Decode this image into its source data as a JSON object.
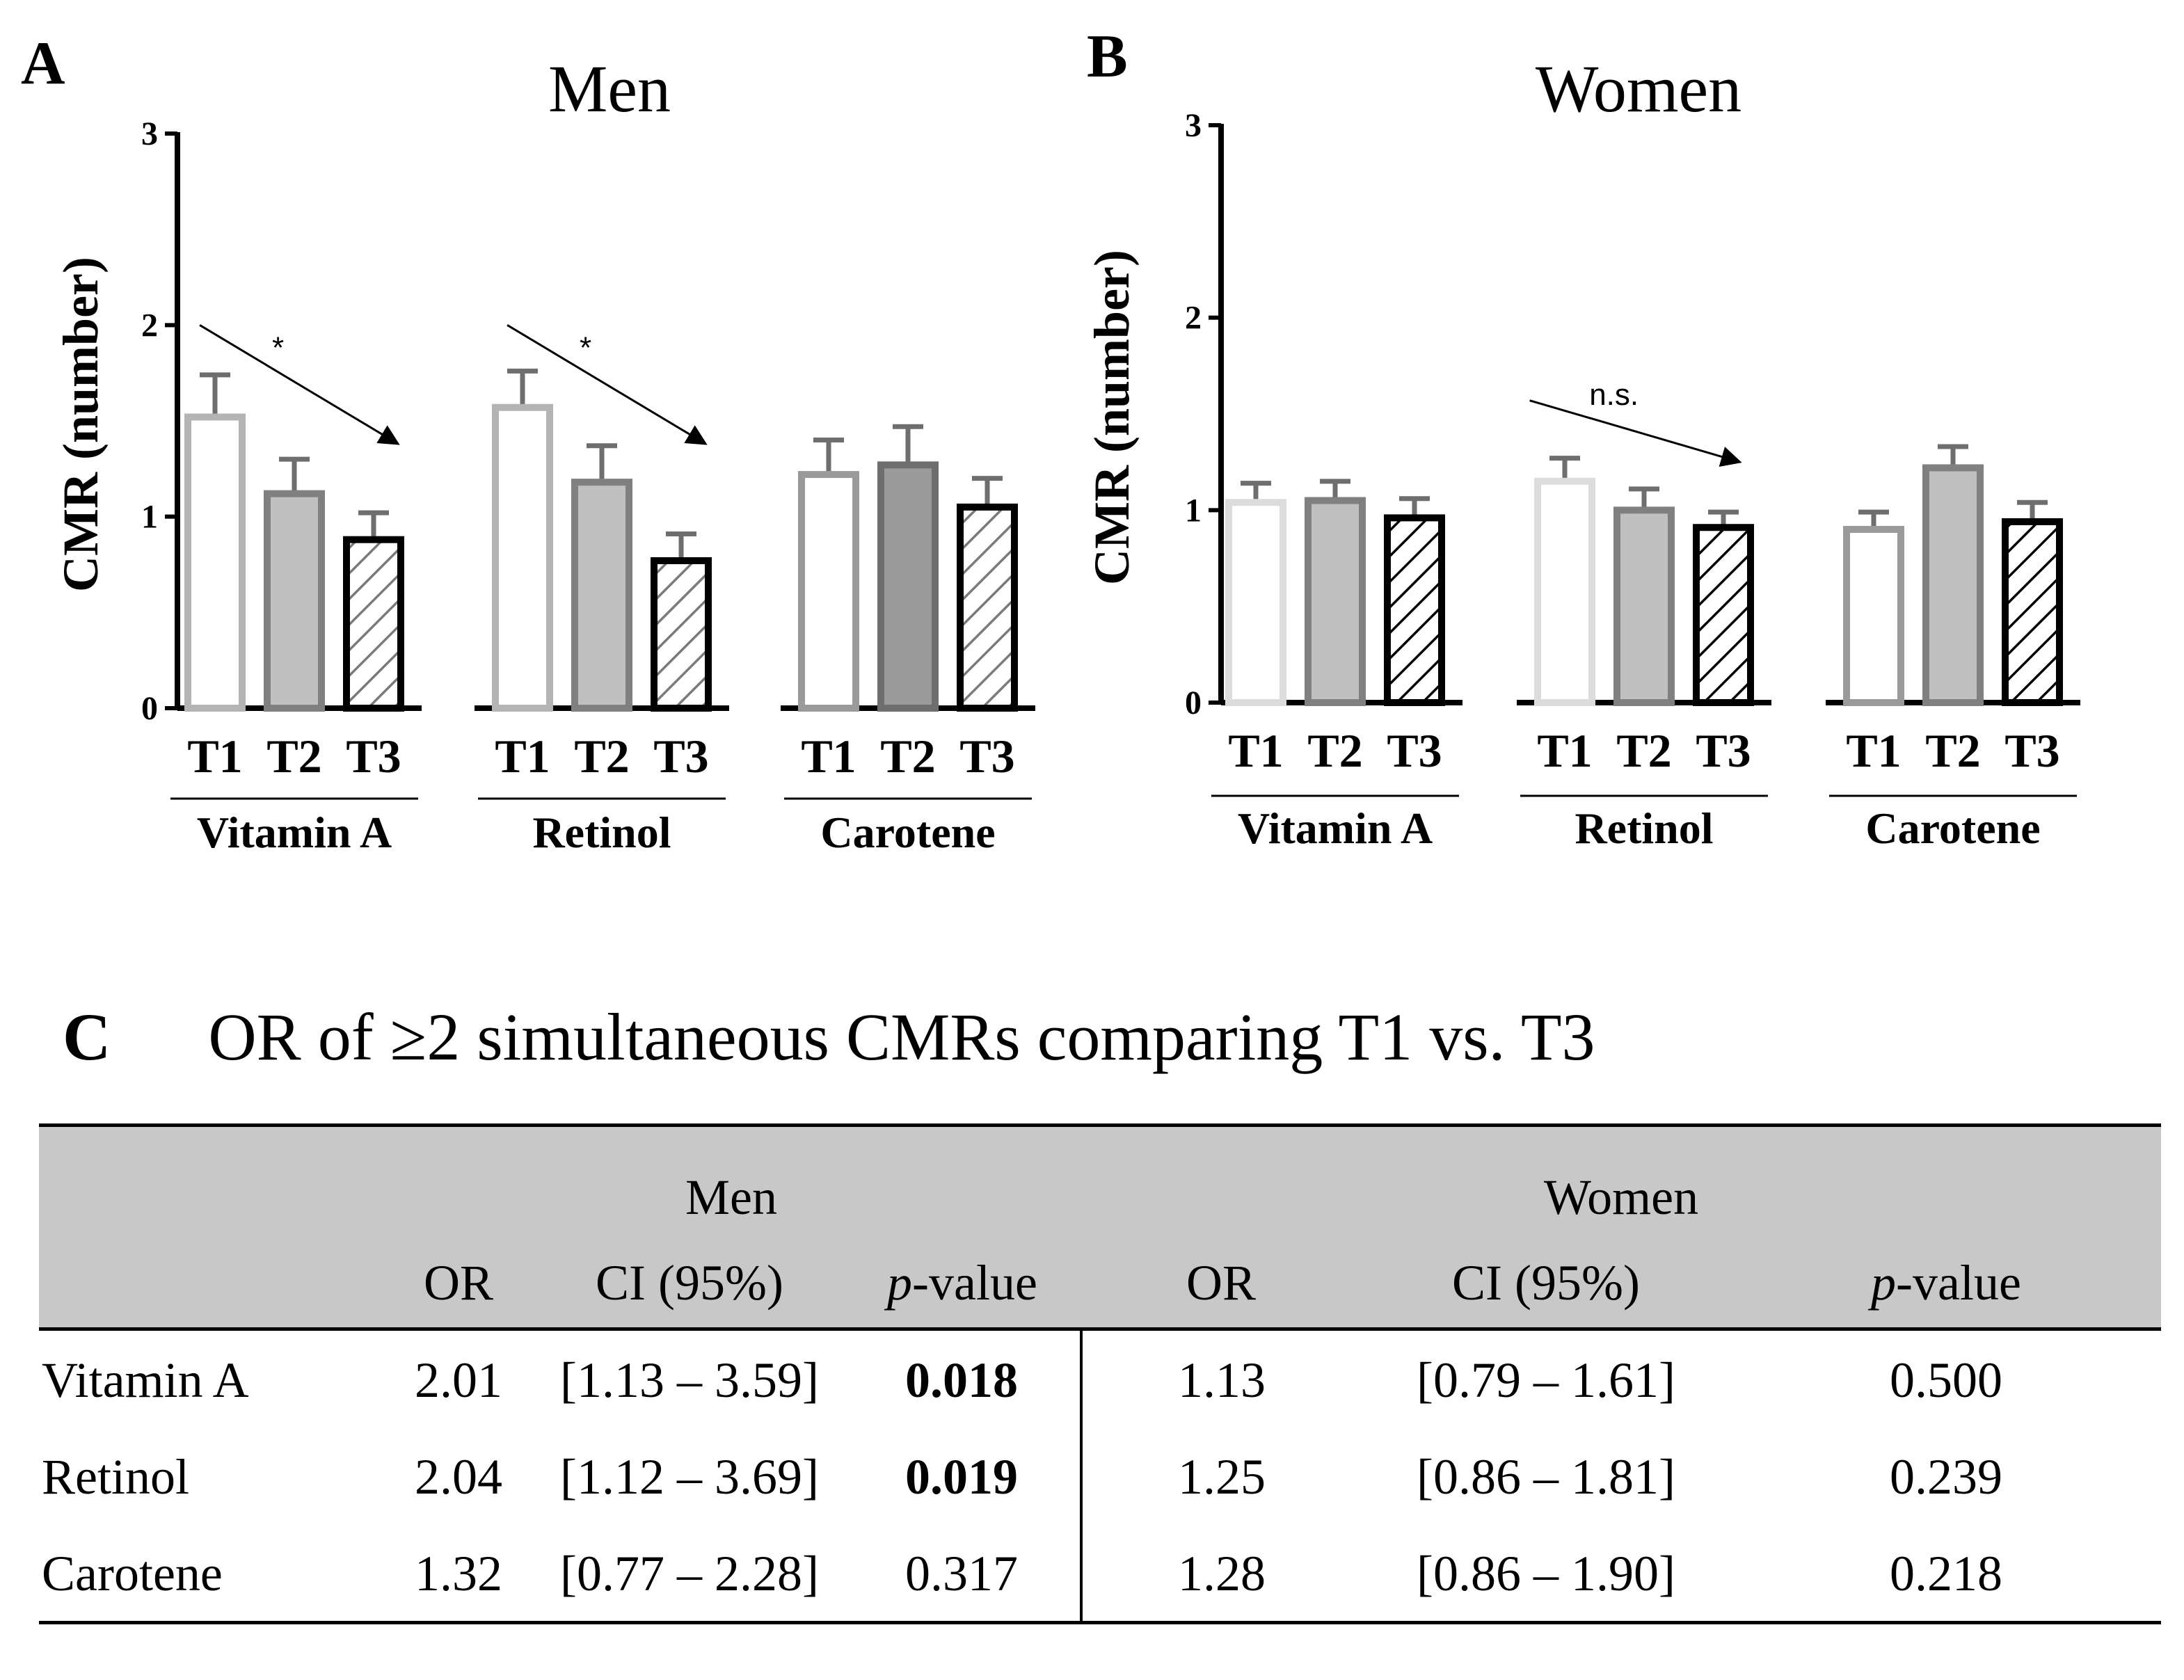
{
  "chart_data": [
    {
      "type": "bar",
      "panel_label": "A",
      "title": "Men",
      "ylabel": "CMR (number)",
      "xlabel": "",
      "ylim": [
        0,
        3
      ],
      "yticks": [
        "0",
        "1",
        "2",
        "3"
      ],
      "groups": [
        {
          "name": "Vitamin A",
          "categories": [
            "T1",
            "T2",
            "T3"
          ],
          "values": [
            1.52,
            1.12,
            0.88
          ],
          "errors": [
            0.22,
            0.18,
            0.14
          ],
          "styles": [
            "open-light",
            "gray",
            "hatched"
          ],
          "trend": {
            "label": "*",
            "from": [
              0.15,
              2.0
            ],
            "to": [
              2.65,
              1.38
            ]
          }
        },
        {
          "name": "Retinol",
          "categories": [
            "T1",
            "T2",
            "T3"
          ],
          "values": [
            1.57,
            1.18,
            0.77
          ],
          "errors": [
            0.19,
            0.19,
            0.14
          ],
          "styles": [
            "open-light",
            "gray",
            "hatched"
          ],
          "trend": {
            "label": "*",
            "from": [
              0.15,
              2.0
            ],
            "to": [
              2.65,
              1.38
            ]
          }
        },
        {
          "name": "Carotene",
          "categories": [
            "T1",
            "T2",
            "T3"
          ],
          "values": [
            1.22,
            1.27,
            1.05
          ],
          "errors": [
            0.18,
            0.2,
            0.15
          ],
          "styles": [
            "open-mid",
            "dark-gray",
            "hatched"
          ]
        }
      ]
    },
    {
      "type": "bar",
      "panel_label": "B",
      "title": "Women",
      "ylabel": "CMR (number)",
      "xlabel": "",
      "ylim": [
        0,
        3
      ],
      "yticks": [
        "0",
        "1",
        "2",
        "3"
      ],
      "groups": [
        {
          "name": "Vitamin A",
          "categories": [
            "T1",
            "T2",
            "T3"
          ],
          "values": [
            1.04,
            1.05,
            0.96
          ],
          "errors": [
            0.1,
            0.1,
            0.1
          ],
          "styles": [
            "open-pale",
            "gray",
            "hatched-dark"
          ]
        },
        {
          "name": "Retinol",
          "categories": [
            "T1",
            "T2",
            "T3"
          ],
          "values": [
            1.15,
            1.0,
            0.91
          ],
          "errors": [
            0.12,
            0.11,
            0.08
          ],
          "styles": [
            "open-pale",
            "gray",
            "hatched-dark"
          ],
          "trend": {
            "label": "n.s.",
            "from": [
              -0.1,
              1.57
            ],
            "to": [
              2.55,
              1.25
            ]
          }
        },
        {
          "name": "Carotene",
          "categories": [
            "T1",
            "T2",
            "T3"
          ],
          "values": [
            0.9,
            1.22,
            0.94
          ],
          "errors": [
            0.09,
            0.11,
            0.1
          ],
          "styles": [
            "open-mid",
            "gray",
            "hatched-dark"
          ]
        }
      ]
    }
  ],
  "panel_c": {
    "label": "C",
    "title": "OR of ≥2 simultaneous CMRs comparing T1 vs. T3",
    "table": {
      "sex_headers": [
        "Men",
        "Women"
      ],
      "col_headers": [
        "OR",
        "CI (95%)",
        "-value"
      ],
      "p_prefix": "p",
      "rows": [
        {
          "name": "Vitamin A",
          "men": {
            "or": "2.01",
            "ci": "[1.13 – 3.59]",
            "p": "0.018",
            "p_bold": true
          },
          "women": {
            "or": "1.13",
            "ci": "[0.79 – 1.61]",
            "p": "0.500",
            "p_bold": false
          }
        },
        {
          "name": "Retinol",
          "men": {
            "or": "2.04",
            "ci": "[1.12 – 3.69]",
            "p": "0.019",
            "p_bold": true
          },
          "women": {
            "or": "1.25",
            "ci": "[0.86 – 1.81]",
            "p": "0.239",
            "p_bold": false
          }
        },
        {
          "name": "Carotene",
          "men": {
            "or": "1.32",
            "ci": "[0.77 – 2.28]",
            "p": "0.317",
            "p_bold": false
          },
          "women": {
            "or": "1.28",
            "ci": "[0.86 – 1.90]",
            "p": "0.218",
            "p_bold": false
          }
        }
      ]
    }
  },
  "colors": {
    "open-light": "#b4b4b4",
    "open-pale": "#dcdcdc",
    "open-mid": "#9a9a9a",
    "gray-fill": "#c0c0c0",
    "gray-stroke": "#808080",
    "dark-gray-fill": "#9a9a9a",
    "dark-gray-stroke": "#6e6e6e",
    "hatch-stroke": "#6e6e6e",
    "hatch-dark": "#000000",
    "error": "#6e6e6e"
  }
}
